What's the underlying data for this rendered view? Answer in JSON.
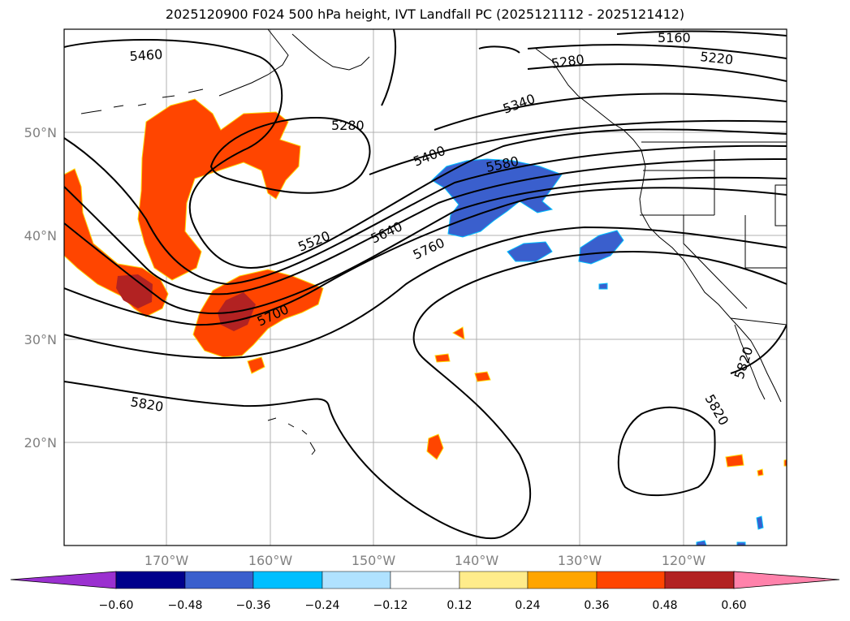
{
  "title": "2025120900 F024 500 hPa height, IVT Landfall PC (2025121112 - 2025121412)",
  "lat_labels": [
    "50°N",
    "40°N",
    "30°N",
    "20°N"
  ],
  "lon_labels": [
    "170°W",
    "160°W",
    "150°W",
    "140°W",
    "130°W",
    "120°W"
  ],
  "contour_labels": [
    "5160",
    "5220",
    "5280",
    "5280",
    "5340",
    "5400",
    "5460",
    "5520",
    "5580",
    "5640",
    "5700",
    "5760",
    "5820",
    "5820",
    "5820"
  ],
  "colorbar": {
    "ticks": [
      "−0.60",
      "−0.48",
      "−0.36",
      "−0.24",
      "−0.12",
      "0.12",
      "0.24",
      "0.36",
      "0.48",
      "0.60"
    ],
    "colors": [
      "#9b30d0",
      "#00008b",
      "#3a5fcd",
      "#00bfff",
      "#b0e2ff",
      "#ffffff",
      "#ffec8b",
      "#ffa500",
      "#ff4500",
      "#b22222",
      "#ff82ab"
    ]
  },
  "colors": {
    "positive_fill": "#ff4500",
    "strong_positive_fill": "#b22222",
    "negative_fill": "#3a5fcd",
    "contour": "#000000",
    "grid": "#b0b0b0"
  }
}
